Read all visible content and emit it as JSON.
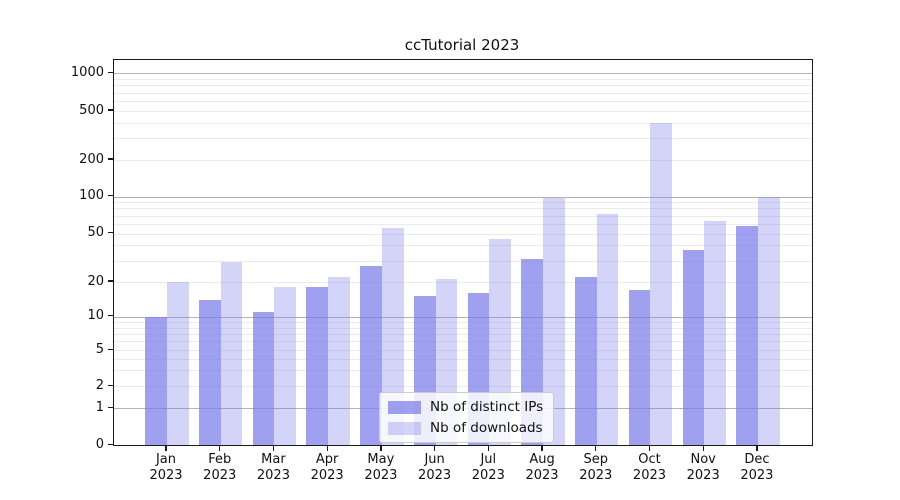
{
  "title": "ccTutorial 2023",
  "legend": {
    "items": [
      {
        "label": "Nb of distinct IPs",
        "color": "#a6a6f0"
      },
      {
        "label": "Nb of downloads",
        "color": "#d8d9f8"
      }
    ]
  },
  "chart_data": {
    "type": "bar",
    "title": "ccTutorial 2023",
    "scale": "symlog-like (log above 1, linear 0-1)",
    "grid": "on",
    "legend_position": "lower center inside plot",
    "categories": [
      "Jan 2023",
      "Feb 2023",
      "Mar 2023",
      "Apr 2023",
      "May 2023",
      "Jun 2023",
      "Jul 2023",
      "Aug 2023",
      "Sep 2023",
      "Oct 2023",
      "Nov 2023",
      "Dec 2023"
    ],
    "series": [
      {
        "name": "Nb of distinct IPs",
        "color": "#a6a6f0",
        "values": [
          10,
          14,
          11,
          18,
          27,
          15,
          16,
          31,
          22,
          17,
          37,
          58
        ]
      },
      {
        "name": "Nb of downloads",
        "color": "#d8d9f8",
        "values": [
          20,
          29,
          18,
          22,
          56,
          21,
          45,
          97,
          72,
          400,
          63,
          100
        ]
      }
    ],
    "yticks": [
      0,
      1,
      2,
      5,
      10,
      20,
      50,
      100,
      200,
      500,
      1000
    ],
    "ylim": [
      0,
      1500
    ],
    "xlabel": "",
    "ylabel": ""
  }
}
